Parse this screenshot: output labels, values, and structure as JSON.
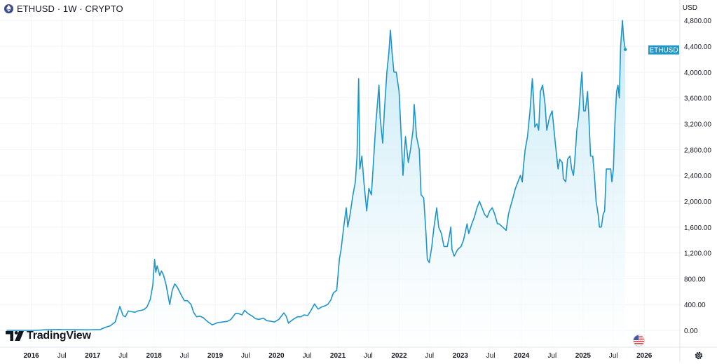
{
  "header": {
    "title": "ETHUSD · 1W · CRYPTO",
    "symbol_icon": "ethereum-icon"
  },
  "axis": {
    "currency": "USD"
  },
  "branding": {
    "logo_text": "TradingView",
    "logo_icon": "tradingview-logo-icon"
  },
  "price_tag": {
    "label": "ETHUSD",
    "color": "#2196c9"
  },
  "colors": {
    "line": "#1e95c9",
    "fill_top": "#bfe7f5",
    "fill_bottom": "#ffffff",
    "grid": "#f0f3fa",
    "axis_border": "#e0e3eb"
  },
  "controls": {
    "flag_icon": "usa-flag-icon",
    "settings_icon": "gear-icon"
  },
  "chart_data": {
    "type": "area",
    "title": "ETHUSD · 1W · CRYPTO",
    "ylabel": "USD",
    "ylim": [
      -260,
      4900
    ],
    "xlim": [
      "2015-08-01",
      "2026-08-01"
    ],
    "grid": true,
    "y_ticks": [
      "0.00",
      "400.00",
      "800.00",
      "1,200.00",
      "1,600.00",
      "2,000.00",
      "2,400.00",
      "2,800.00",
      "3,200.00",
      "3,600.00",
      "4,000.00",
      "4,400.00",
      "4,800.00"
    ],
    "y_tick_values": [
      0,
      400,
      800,
      1200,
      1600,
      2000,
      2400,
      2800,
      3200,
      3600,
      4000,
      4400,
      4800
    ],
    "x_ticks": [
      {
        "label": "2016",
        "date": "2016-01-01",
        "bold": true
      },
      {
        "label": "Jul",
        "date": "2016-07-01",
        "bold": false
      },
      {
        "label": "2017",
        "date": "2017-01-01",
        "bold": true
      },
      {
        "label": "Jul",
        "date": "2017-07-01",
        "bold": false
      },
      {
        "label": "2018",
        "date": "2018-01-01",
        "bold": true
      },
      {
        "label": "Jul",
        "date": "2018-07-01",
        "bold": false
      },
      {
        "label": "2019",
        "date": "2019-01-01",
        "bold": true
      },
      {
        "label": "Jul",
        "date": "2019-07-01",
        "bold": false
      },
      {
        "label": "2020",
        "date": "2020-01-01",
        "bold": true
      },
      {
        "label": "Jul",
        "date": "2020-07-01",
        "bold": false
      },
      {
        "label": "2021",
        "date": "2021-01-01",
        "bold": true
      },
      {
        "label": "Jul",
        "date": "2021-07-01",
        "bold": false
      },
      {
        "label": "2022",
        "date": "2022-01-01",
        "bold": true
      },
      {
        "label": "Jul",
        "date": "2022-07-01",
        "bold": false
      },
      {
        "label": "2023",
        "date": "2023-01-01",
        "bold": true
      },
      {
        "label": "Jul",
        "date": "2023-07-01",
        "bold": false
      },
      {
        "label": "2024",
        "date": "2024-01-01",
        "bold": true
      },
      {
        "label": "Jul",
        "date": "2024-07-01",
        "bold": false
      },
      {
        "label": "2025",
        "date": "2025-01-01",
        "bold": true
      },
      {
        "label": "Jul",
        "date": "2025-07-01",
        "bold": false
      },
      {
        "label": "2026",
        "date": "2026-01-01",
        "bold": true
      }
    ],
    "series": [
      {
        "name": "ETHUSD",
        "x": [
          "2015-08-07",
          "2015-11-01",
          "2016-02-01",
          "2016-03-15",
          "2016-06-15",
          "2016-07-01",
          "2016-09-01",
          "2016-12-01",
          "2017-01-15",
          "2017-02-15",
          "2017-03-15",
          "2017-04-15",
          "2017-05-15",
          "2017-06-12",
          "2017-07-01",
          "2017-07-15",
          "2017-08-01",
          "2017-08-20",
          "2017-09-10",
          "2017-09-25",
          "2017-10-15",
          "2017-11-01",
          "2017-11-20",
          "2017-12-10",
          "2017-12-25",
          "2018-01-05",
          "2018-01-12",
          "2018-01-20",
          "2018-02-05",
          "2018-02-15",
          "2018-02-28",
          "2018-03-15",
          "2018-04-05",
          "2018-04-20",
          "2018-05-05",
          "2018-05-20",
          "2018-06-10",
          "2018-07-01",
          "2018-07-20",
          "2018-08-10",
          "2018-08-25",
          "2018-09-12",
          "2018-10-01",
          "2018-10-20",
          "2018-11-15",
          "2018-11-25",
          "2018-12-15",
          "2019-01-15",
          "2019-02-15",
          "2019-03-15",
          "2019-04-05",
          "2019-05-01",
          "2019-05-20",
          "2019-06-10",
          "2019-06-25",
          "2019-07-15",
          "2019-08-10",
          "2019-08-30",
          "2019-09-20",
          "2019-10-15",
          "2019-11-05",
          "2019-12-01",
          "2019-12-20",
          "2020-01-15",
          "2020-02-14",
          "2020-02-28",
          "2020-03-13",
          "2020-03-25",
          "2020-04-15",
          "2020-05-05",
          "2020-05-25",
          "2020-06-15",
          "2020-07-05",
          "2020-07-25",
          "2020-08-15",
          "2020-09-05",
          "2020-09-25",
          "2020-10-15",
          "2020-11-01",
          "2020-11-20",
          "2020-12-05",
          "2020-12-25",
          "2021-01-10",
          "2021-01-20",
          "2021-02-05",
          "2021-02-20",
          "2021-03-01",
          "2021-03-15",
          "2021-04-01",
          "2021-04-15",
          "2021-04-25",
          "2021-05-05",
          "2021-05-12",
          "2021-05-24",
          "2021-06-05",
          "2021-06-22",
          "2021-07-05",
          "2021-07-20",
          "2021-08-01",
          "2021-08-15",
          "2021-09-03",
          "2021-09-10",
          "2021-09-25",
          "2021-10-05",
          "2021-10-20",
          "2021-11-01",
          "2021-11-10",
          "2021-11-20",
          "2021-12-01",
          "2021-12-15",
          "2022-01-01",
          "2022-01-10",
          "2022-01-24",
          "2022-02-08",
          "2022-02-25",
          "2022-03-10",
          "2022-03-25",
          "2022-04-01",
          "2022-04-15",
          "2022-05-01",
          "2022-05-12",
          "2022-05-28",
          "2022-06-10",
          "2022-06-18",
          "2022-06-30",
          "2022-07-15",
          "2022-07-28",
          "2022-08-13",
          "2022-08-25",
          "2022-09-10",
          "2022-09-25",
          "2022-10-15",
          "2022-10-30",
          "2022-11-05",
          "2022-11-12",
          "2022-11-25",
          "2022-12-15",
          "2023-01-05",
          "2023-01-20",
          "2023-02-10",
          "2023-02-20",
          "2023-03-10",
          "2023-03-25",
          "2023-04-10",
          "2023-04-25",
          "2023-05-10",
          "2023-05-25",
          "2023-06-10",
          "2023-06-25",
          "2023-07-10",
          "2023-07-25",
          "2023-08-10",
          "2023-08-20",
          "2023-09-10",
          "2023-10-01",
          "2023-10-15",
          "2023-10-25",
          "2023-11-10",
          "2023-11-25",
          "2023-12-10",
          "2023-12-25",
          "2024-01-05",
          "2024-01-12",
          "2024-01-22",
          "2024-02-05",
          "2024-02-20",
          "2024-03-05",
          "2024-03-12",
          "2024-03-20",
          "2024-04-01",
          "2024-04-12",
          "2024-04-22",
          "2024-05-05",
          "2024-05-20",
          "2024-05-30",
          "2024-06-15",
          "2024-07-01",
          "2024-07-20",
          "2024-08-05",
          "2024-08-15",
          "2024-08-30",
          "2024-09-06",
          "2024-09-20",
          "2024-10-01",
          "2024-10-15",
          "2024-10-25",
          "2024-11-05",
          "2024-11-12",
          "2024-11-25",
          "2024-12-05",
          "2024-12-16",
          "2024-12-25",
          "2025-01-05",
          "2025-01-15",
          "2025-01-28",
          "2025-02-05",
          "2025-02-15",
          "2025-02-28",
          "2025-03-10",
          "2025-03-20",
          "2025-04-01",
          "2025-04-09",
          "2025-04-20",
          "2025-05-01",
          "2025-05-10",
          "2025-05-20",
          "2025-06-01",
          "2025-06-15",
          "2025-06-22",
          "2025-07-01",
          "2025-07-10",
          "2025-07-20",
          "2025-07-28",
          "2025-08-05",
          "2025-08-13",
          "2025-08-24",
          "2025-09-01",
          "2025-09-10"
        ],
        "values": [
          1,
          1,
          1,
          8,
          14,
          12,
          12,
          8,
          10,
          12,
          45,
          70,
          130,
          370,
          230,
          210,
          300,
          290,
          280,
          300,
          310,
          320,
          360,
          480,
          700,
          1100,
          900,
          1000,
          850,
          920,
          850,
          700,
          400,
          620,
          720,
          670,
          560,
          460,
          460,
          400,
          280,
          210,
          220,
          200,
          140,
          120,
          85,
          120,
          130,
          140,
          170,
          260,
          260,
          240,
          310,
          260,
          220,
          180,
          170,
          190,
          150,
          140,
          130,
          170,
          270,
          220,
          110,
          140,
          180,
          210,
          210,
          240,
          230,
          310,
          410,
          330,
          360,
          380,
          400,
          470,
          580,
          620,
          1100,
          1250,
          1600,
          1900,
          1600,
          1800,
          2100,
          2300,
          2700,
          3900,
          2500,
          2700,
          2300,
          1850,
          2200,
          2100,
          2600,
          3200,
          3800,
          3300,
          2900,
          3400,
          4000,
          4300,
          4650,
          4300,
          4000,
          4000,
          3700,
          3200,
          2400,
          3000,
          2600,
          2800,
          3100,
          3500,
          3000,
          2800,
          2100,
          2050,
          1500,
          1100,
          1050,
          1300,
          1600,
          1900,
          1600,
          1500,
          1300,
          1300,
          1500,
          1600,
          1250,
          1150,
          1250,
          1300,
          1400,
          1650,
          1500,
          1650,
          1750,
          1900,
          2000,
          1900,
          1800,
          1750,
          1850,
          1900,
          1800,
          1650,
          1650,
          1600,
          1550,
          1800,
          1900,
          2050,
          2200,
          2300,
          2400,
          2300,
          2550,
          2800,
          3000,
          3400,
          3900,
          3600,
          3150,
          3200,
          3100,
          3700,
          3800,
          3500,
          3100,
          3300,
          3400,
          2900,
          2500,
          2650,
          2600,
          2350,
          2300,
          2650,
          2700,
          2500,
          2400,
          2600,
          3100,
          3300,
          3700,
          4000,
          3400,
          3400,
          3700,
          3300,
          2700,
          2700,
          2400,
          2000,
          1800,
          1600,
          1600,
          1800,
          1850,
          2500,
          2500,
          2500,
          2300,
          2500,
          3200,
          3700,
          3800,
          3600,
          4400,
          4800,
          4500,
          4350
        ]
      }
    ],
    "last_value_marker": "ETHUSD"
  }
}
